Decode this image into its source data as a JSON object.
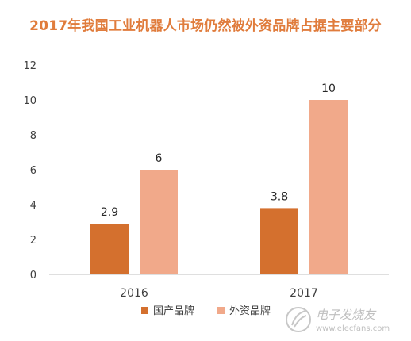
{
  "chart_data": {
    "type": "bar",
    "title": "2017年我国工业机器人市场仍然被外资品牌占据主要部分",
    "categories": [
      "2016",
      "2017"
    ],
    "series": [
      {
        "name": "国产品牌",
        "values": [
          2.9,
          3.8
        ],
        "labels": [
          "2.9",
          "3.8"
        ]
      },
      {
        "name": "外资品牌",
        "values": [
          6,
          10
        ],
        "labels": [
          "6",
          "10"
        ]
      }
    ],
    "yticks": [
      0,
      2,
      4,
      6,
      8,
      10,
      12
    ],
    "ylim": [
      0,
      12
    ],
    "grid": false,
    "legend_position": "bottom",
    "xlabel": "",
    "ylabel": ""
  },
  "watermark": {
    "text": "电子发烧友",
    "url": "www.elecfans.com"
  },
  "colors": {
    "title": "#e07c3c",
    "series": [
      "#d4702e",
      "#f1a98a"
    ],
    "axis": "#bfbfbf",
    "tick_text": "#404040",
    "label_text": "#262626"
  }
}
